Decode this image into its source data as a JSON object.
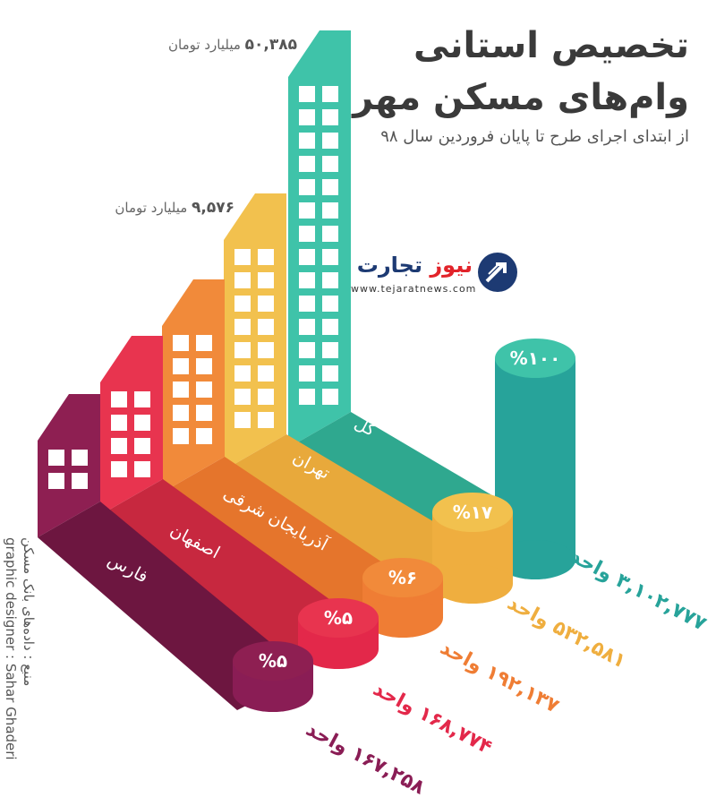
{
  "title_line1": "تخصیص استانی",
  "title_line2": "وام‌های مسکن مهر",
  "subtitle": "از ابتدای اجرای طرح تا پایان فروردین سال ۹۸",
  "logo": {
    "name_part1": "تجارت",
    "name_part2": "نیوز",
    "url": "www.tejaratnews.com"
  },
  "credit": {
    "source": "منبع : داده‌های بانک مسکن",
    "designer": "graphic designer : Sahar Ghaderi"
  },
  "chart_data": {
    "type": "bar",
    "categories": [
      "کل",
      "تهران",
      "آذربایجان شرقی",
      "اصفهان",
      "فارس"
    ],
    "percent_labels": [
      "%۱۰۰",
      "%۱۷",
      "%۶",
      "%۵",
      "%۵"
    ],
    "percent_values": [
      100,
      17,
      6,
      5,
      5
    ],
    "units": [
      3102777,
      532581,
      192137,
      168774,
      167258
    ],
    "unit_labels": [
      "۳,۱۰۲,۷۷۷",
      "۵۳۲,۵۸۱",
      "۱۹۲,۱۳۷",
      "۱۶۸,۷۷۴",
      "۱۶۷,۲۵۸"
    ],
    "unit_suffix": "واحد",
    "amounts": [
      {
        "value_label": "۵۰,۳۸۵",
        "unit": "میلیارد تومان"
      },
      {
        "value_label": "۹,۵۷۶",
        "unit": "میلیارد تومان"
      }
    ],
    "colors": [
      "#3fc3a9",
      "#f2c14e",
      "#f18a3a",
      "#e8344f",
      "#8e1f52"
    ],
    "side_colors": [
      "#2fa88f",
      "#e8a93b",
      "#e5752c",
      "#c7283f",
      "#6d1640"
    ],
    "cylinder_colors": [
      "#27a39a",
      "#efae3f",
      "#ef7d34",
      "#e3284a",
      "#8a1d55"
    ]
  }
}
